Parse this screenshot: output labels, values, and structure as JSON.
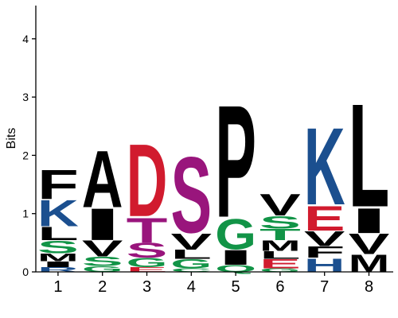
{
  "chart_data": {
    "type": "sequence-logo",
    "ylabel": "Bits",
    "ylim": [
      0,
      4.5
    ],
    "yticks": [
      0,
      1,
      2,
      3,
      4
    ],
    "grid": false,
    "legend": "none",
    "colors": {
      "black": "#000000",
      "blue": "#1b4f8f",
      "green": "#129447",
      "red": "#d11b2e",
      "purple": "#99157c"
    },
    "positions": [
      {
        "label": "1",
        "letters": [
          {
            "char": "R",
            "bits": 0.08,
            "color": "blue"
          },
          {
            "char": "I",
            "bits": 0.1,
            "color": "black"
          },
          {
            "char": "M",
            "bits": 0.14,
            "color": "black"
          },
          {
            "char": "S",
            "bits": 0.22,
            "color": "green"
          },
          {
            "char": "L",
            "bits": 0.24,
            "color": "black"
          },
          {
            "char": "K",
            "bits": 0.46,
            "color": "blue"
          },
          {
            "char": "F",
            "bits": 0.52,
            "color": "black"
          }
        ]
      },
      {
        "label": "2",
        "letters": [
          {
            "char": "G",
            "bits": 0.1,
            "color": "green"
          },
          {
            "char": "S",
            "bits": 0.16,
            "color": "green"
          },
          {
            "char": "V",
            "bits": 0.28,
            "color": "black"
          },
          {
            "char": "I",
            "bits": 0.56,
            "color": "black"
          },
          {
            "char": "A",
            "bits": 1.0,
            "color": "black"
          }
        ]
      },
      {
        "label": "3",
        "letters": [
          {
            "char": "E",
            "bits": 0.08,
            "color": "red"
          },
          {
            "char": "G",
            "bits": 0.16,
            "color": "green"
          },
          {
            "char": "S",
            "bits": 0.26,
            "color": "purple"
          },
          {
            "char": "T",
            "bits": 0.44,
            "color": "purple"
          },
          {
            "char": "D",
            "bits": 1.28,
            "color": "red"
          }
        ]
      },
      {
        "label": "4",
        "letters": [
          {
            "char": "C",
            "bits": 0.06,
            "color": "green"
          },
          {
            "char": "G",
            "bits": 0.16,
            "color": "green"
          },
          {
            "char": "L",
            "bits": 0.16,
            "color": "black"
          },
          {
            "char": "V",
            "bits": 0.28,
            "color": "black"
          },
          {
            "char": "S",
            "bits": 1.34,
            "color": "purple"
          }
        ]
      },
      {
        "label": "5",
        "letters": [
          {
            "char": "Q",
            "bits": 0.12,
            "color": "green"
          },
          {
            "char": "I",
            "bits": 0.26,
            "color": "black"
          },
          {
            "char": "G",
            "bits": 0.54,
            "color": "green"
          },
          {
            "char": "P",
            "bits": 1.98,
            "color": "black"
          }
        ]
      },
      {
        "label": "6",
        "letters": [
          {
            "char": "G",
            "bits": 0.06,
            "color": "green"
          },
          {
            "char": "E",
            "bits": 0.16,
            "color": "red"
          },
          {
            "char": "L",
            "bits": 0.14,
            "color": "black"
          },
          {
            "char": "M",
            "bits": 0.18,
            "color": "black"
          },
          {
            "char": "T",
            "bits": 0.2,
            "color": "green"
          },
          {
            "char": "S",
            "bits": 0.22,
            "color": "green"
          },
          {
            "char": "V",
            "bits": 0.38,
            "color": "black"
          }
        ]
      },
      {
        "label": "7",
        "letters": [
          {
            "char": "H",
            "bits": 0.24,
            "color": "blue"
          },
          {
            "char": "F",
            "bits": 0.2,
            "color": "black"
          },
          {
            "char": "V",
            "bits": 0.26,
            "color": "black"
          },
          {
            "char": "E",
            "bits": 0.44,
            "color": "red"
          },
          {
            "char": "K",
            "bits": 1.36,
            "color": "blue"
          }
        ]
      },
      {
        "label": "8",
        "letters": [
          {
            "char": "M",
            "bits": 0.3,
            "color": "black"
          },
          {
            "char": "V",
            "bits": 0.36,
            "color": "black"
          },
          {
            "char": "I",
            "bits": 0.44,
            "color": "black"
          },
          {
            "char": "L",
            "bits": 1.82,
            "color": "black"
          }
        ]
      }
    ]
  }
}
